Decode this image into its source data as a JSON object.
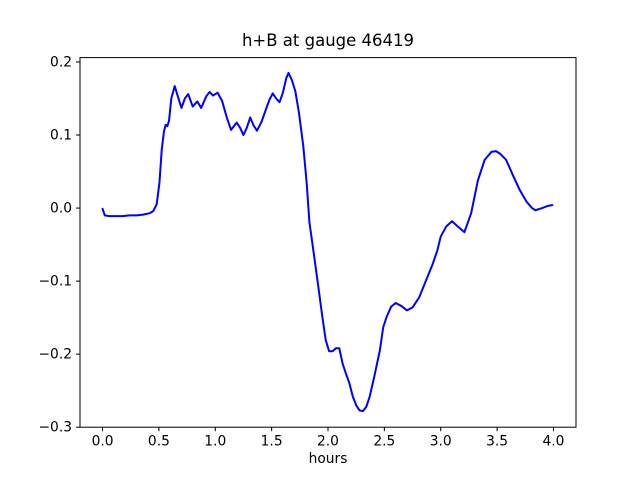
{
  "chart_data": {
    "type": "line",
    "title": "h+B at gauge 46419",
    "xlabel": "hours",
    "ylabel": "",
    "grid": false,
    "legend": null,
    "xlim": [
      -0.2,
      4.2
    ],
    "ylim": [
      -0.3,
      0.206
    ],
    "xticks": [
      0.0,
      0.5,
      1.0,
      1.5,
      2.0,
      2.5,
      3.0,
      3.5,
      4.0
    ],
    "xtick_labels": [
      "0.0",
      "0.5",
      "1.0",
      "1.5",
      "2.0",
      "2.5",
      "3.0",
      "3.5",
      "4.0"
    ],
    "yticks": [
      0.2,
      0.1,
      0.0,
      -0.1,
      -0.2,
      -0.3
    ],
    "ytick_labels": [
      "0.2",
      "0.1",
      "0.0",
      "−0.1",
      "−0.2",
      "−0.3"
    ],
    "series": [
      {
        "name": "h+B",
        "color": "#0000ff",
        "x": [
          0.0,
          0.02,
          0.06,
          0.12,
          0.18,
          0.24,
          0.3,
          0.36,
          0.42,
          0.45,
          0.48,
          0.505,
          0.525,
          0.545,
          0.56,
          0.575,
          0.59,
          0.61,
          0.64,
          0.67,
          0.7,
          0.73,
          0.76,
          0.8,
          0.84,
          0.875,
          0.92,
          0.95,
          0.98,
          1.02,
          1.06,
          1.1,
          1.14,
          1.19,
          1.22,
          1.25,
          1.28,
          1.31,
          1.34,
          1.37,
          1.41,
          1.44,
          1.48,
          1.51,
          1.54,
          1.57,
          1.6,
          1.63,
          1.65,
          1.68,
          1.71,
          1.74,
          1.78,
          1.81,
          1.835,
          1.87,
          1.91,
          1.95,
          1.98,
          2.01,
          2.04,
          2.07,
          2.1,
          2.13,
          2.16,
          2.19,
          2.22,
          2.25,
          2.28,
          2.31,
          2.34,
          2.37,
          2.41,
          2.46,
          2.49,
          2.52,
          2.56,
          2.6,
          2.65,
          2.7,
          2.75,
          2.81,
          2.87,
          2.93,
          2.97,
          3.0,
          3.05,
          3.1,
          3.15,
          3.21,
          3.27,
          3.33,
          3.39,
          3.45,
          3.49,
          3.53,
          3.58,
          3.64,
          3.7,
          3.76,
          3.81,
          3.84,
          3.9,
          3.95,
          3.99
        ],
        "y": [
          -0.001,
          -0.01,
          -0.011,
          -0.011,
          -0.011,
          -0.01,
          -0.01,
          -0.009,
          -0.007,
          -0.004,
          0.005,
          0.035,
          0.08,
          0.105,
          0.114,
          0.112,
          0.12,
          0.15,
          0.167,
          0.152,
          0.137,
          0.15,
          0.156,
          0.139,
          0.146,
          0.137,
          0.153,
          0.159,
          0.154,
          0.158,
          0.147,
          0.125,
          0.107,
          0.117,
          0.11,
          0.1,
          0.11,
          0.124,
          0.113,
          0.106,
          0.118,
          0.131,
          0.148,
          0.157,
          0.15,
          0.145,
          0.158,
          0.178,
          0.185,
          0.175,
          0.16,
          0.133,
          0.086,
          0.036,
          -0.019,
          -0.058,
          -0.103,
          -0.149,
          -0.181,
          -0.196,
          -0.196,
          -0.192,
          -0.192,
          -0.213,
          -0.227,
          -0.24,
          -0.258,
          -0.27,
          -0.277,
          -0.278,
          -0.272,
          -0.258,
          -0.231,
          -0.195,
          -0.163,
          -0.149,
          -0.135,
          -0.13,
          -0.134,
          -0.14,
          -0.136,
          -0.122,
          -0.099,
          -0.076,
          -0.058,
          -0.039,
          -0.025,
          -0.018,
          -0.025,
          -0.033,
          -0.007,
          0.038,
          0.066,
          0.077,
          0.078,
          0.074,
          0.066,
          0.045,
          0.025,
          0.009,
          0.0,
          -0.003,
          0.0,
          0.003,
          0.004
        ]
      }
    ]
  }
}
